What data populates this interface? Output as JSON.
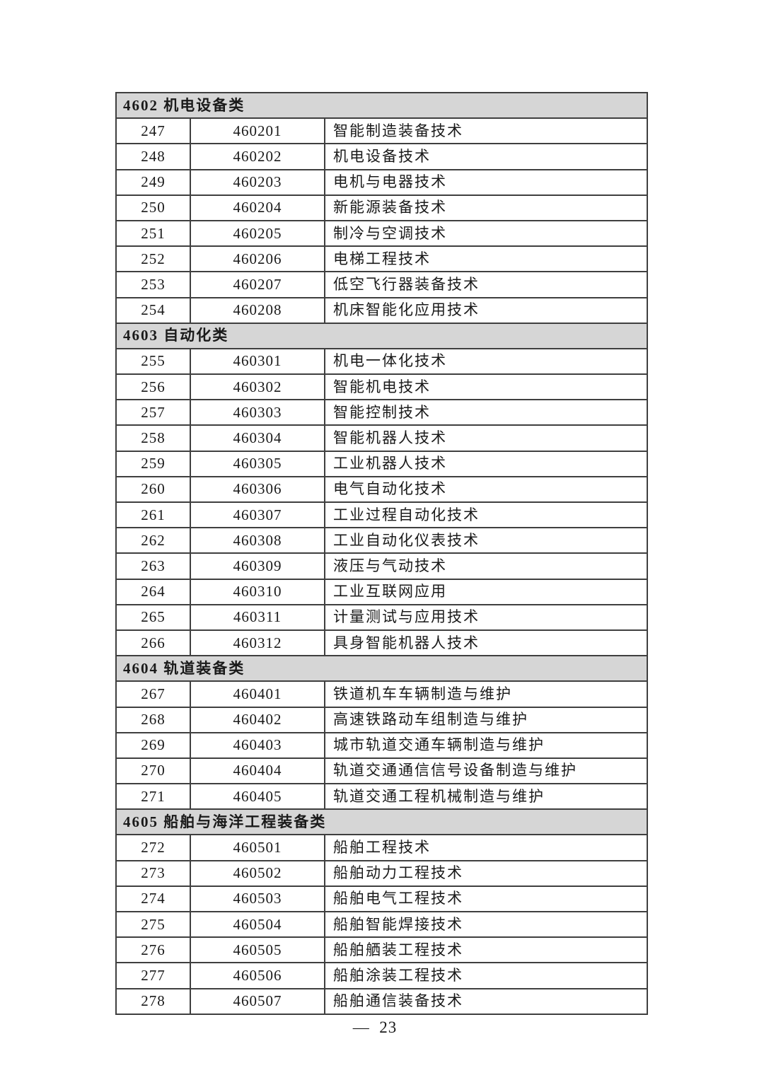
{
  "page": {
    "footer": "—  23"
  },
  "table": {
    "sections": [
      {
        "header": "4602 机电设备类",
        "rows": [
          {
            "seq": "247",
            "code": "460201",
            "name": "智能制造装备技术"
          },
          {
            "seq": "248",
            "code": "460202",
            "name": "机电设备技术"
          },
          {
            "seq": "249",
            "code": "460203",
            "name": "电机与电器技术"
          },
          {
            "seq": "250",
            "code": "460204",
            "name": "新能源装备技术"
          },
          {
            "seq": "251",
            "code": "460205",
            "name": "制冷与空调技术"
          },
          {
            "seq": "252",
            "code": "460206",
            "name": "电梯工程技术"
          },
          {
            "seq": "253",
            "code": "460207",
            "name": "低空飞行器装备技术"
          },
          {
            "seq": "254",
            "code": "460208",
            "name": "机床智能化应用技术"
          }
        ]
      },
      {
        "header": "4603 自动化类",
        "rows": [
          {
            "seq": "255",
            "code": "460301",
            "name": "机电一体化技术"
          },
          {
            "seq": "256",
            "code": "460302",
            "name": "智能机电技术"
          },
          {
            "seq": "257",
            "code": "460303",
            "name": "智能控制技术"
          },
          {
            "seq": "258",
            "code": "460304",
            "name": "智能机器人技术"
          },
          {
            "seq": "259",
            "code": "460305",
            "name": "工业机器人技术"
          },
          {
            "seq": "260",
            "code": "460306",
            "name": "电气自动化技术"
          },
          {
            "seq": "261",
            "code": "460307",
            "name": "工业过程自动化技术"
          },
          {
            "seq": "262",
            "code": "460308",
            "name": "工业自动化仪表技术"
          },
          {
            "seq": "263",
            "code": "460309",
            "name": "液压与气动技术"
          },
          {
            "seq": "264",
            "code": "460310",
            "name": "工业互联网应用"
          },
          {
            "seq": "265",
            "code": "460311",
            "name": "计量测试与应用技术"
          },
          {
            "seq": "266",
            "code": "460312",
            "name": "具身智能机器人技术"
          }
        ]
      },
      {
        "header": "4604 轨道装备类",
        "rows": [
          {
            "seq": "267",
            "code": "460401",
            "name": "铁道机车车辆制造与维护"
          },
          {
            "seq": "268",
            "code": "460402",
            "name": "高速铁路动车组制造与维护"
          },
          {
            "seq": "269",
            "code": "460403",
            "name": "城市轨道交通车辆制造与维护"
          },
          {
            "seq": "270",
            "code": "460404",
            "name": "轨道交通通信信号设备制造与维护"
          },
          {
            "seq": "271",
            "code": "460405",
            "name": "轨道交通工程机械制造与维护"
          }
        ]
      },
      {
        "header": "4605 船舶与海洋工程装备类",
        "rows": [
          {
            "seq": "272",
            "code": "460501",
            "name": "船舶工程技术"
          },
          {
            "seq": "273",
            "code": "460502",
            "name": "船舶动力工程技术"
          },
          {
            "seq": "274",
            "code": "460503",
            "name": "船舶电气工程技术"
          },
          {
            "seq": "275",
            "code": "460504",
            "name": "船舶智能焊接技术"
          },
          {
            "seq": "276",
            "code": "460505",
            "name": "船舶舾装工程技术"
          },
          {
            "seq": "277",
            "code": "460506",
            "name": "船舶涂装工程技术"
          },
          {
            "seq": "278",
            "code": "460507",
            "name": "船舶通信装备技术"
          }
        ]
      }
    ]
  }
}
